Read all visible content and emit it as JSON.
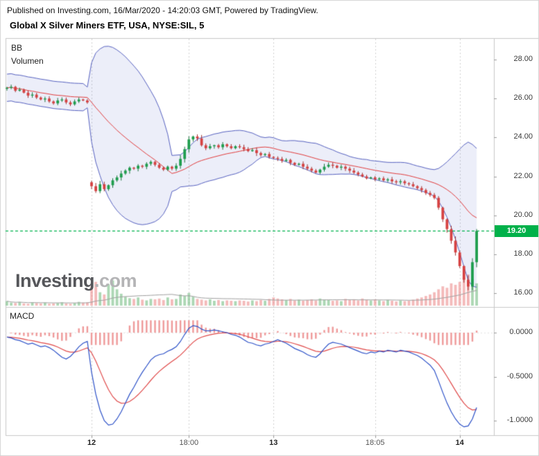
{
  "header": {
    "published_line": "Published on Investing.com, 16/Mar/2020 - 14:20:03 GMT, Powered by TradingView.",
    "title": "Global X Silver Miners ETF, USA, NYSE:SIL, 5"
  },
  "indicators": {
    "bb_label": "BB",
    "volume_label": "Volumen",
    "macd_label": "MACD"
  },
  "watermark": {
    "bold": "Investing",
    "light": ".com"
  },
  "price_label": {
    "value": "19.20"
  },
  "chart_data": {
    "type": "candlestick",
    "title": "Global X Silver Miners ETF, USA, NYSE:SIL, 5",
    "symbol": "NYSE:SIL",
    "interval_minutes": 5,
    "current_price": 19.2,
    "price_axis": {
      "values": [
        28,
        26,
        24,
        22,
        20,
        18,
        16
      ],
      "labels": [
        "28.00",
        "26.00",
        "24.00",
        "22.00",
        "20.00",
        "18.00",
        "16.00"
      ],
      "range": [
        15.3,
        29.1
      ]
    },
    "macd_axis": {
      "values": [
        0,
        -0.5,
        -1.0
      ],
      "labels": [
        "0.0000",
        "-0.5000",
        "-1.0000"
      ],
      "range": [
        -1.16,
        0.28
      ]
    },
    "time_axis": {
      "ticks": [
        {
          "label": "12",
          "index": 20,
          "major": true
        },
        {
          "label": "18:00",
          "index": 43,
          "major": false
        },
        {
          "label": "13",
          "index": 63,
          "major": true
        },
        {
          "label": "18:05",
          "index": 87,
          "major": false
        },
        {
          "label": "14",
          "index": 107,
          "major": true
        }
      ]
    },
    "indicator_params": {
      "bb_period": 20,
      "bb_mult": 2,
      "macd_signal_period": 9,
      "volume_ma_period": 20
    },
    "candles": {
      "closes": [
        26.55,
        26.6,
        26.4,
        26.45,
        26.3,
        26.15,
        26.2,
        26.05,
        25.95,
        26.0,
        25.85,
        25.75,
        25.9,
        25.95,
        25.8,
        25.7,
        25.85,
        25.95,
        25.9,
        25.8,
        21.5,
        21.25,
        21.6,
        21.35,
        21.55,
        21.8,
        21.95,
        22.15,
        22.3,
        22.45,
        22.4,
        22.55,
        22.5,
        22.65,
        22.75,
        22.6,
        22.45,
        22.35,
        22.5,
        22.4,
        22.55,
        22.9,
        23.4,
        23.9,
        24.05,
        23.95,
        23.6,
        23.45,
        23.55,
        23.6,
        23.5,
        23.65,
        23.55,
        23.45,
        23.55,
        23.5,
        23.4,
        23.3,
        23.35,
        23.2,
        23.1,
        23.15,
        23.0,
        22.95,
        22.9,
        22.8,
        22.85,
        22.7,
        22.6,
        22.65,
        22.5,
        22.4,
        22.3,
        22.2,
        22.35,
        22.5,
        22.6,
        22.55,
        22.45,
        22.5,
        22.4,
        22.3,
        22.2,
        22.1,
        22.0,
        21.9,
        21.95,
        21.85,
        21.9,
        21.8,
        21.85,
        21.75,
        21.7,
        21.75,
        21.65,
        21.6,
        21.5,
        21.4,
        21.3,
        21.15,
        21.05,
        20.9,
        20.4,
        19.8,
        19.3,
        18.7,
        18.1,
        17.4,
        16.7,
        16.35,
        17.6,
        19.2
      ],
      "gap_opens": {
        "0": 26.5,
        "20": 21.7
      }
    },
    "volume": [
      60,
      40,
      35,
      50,
      30,
      25,
      45,
      35,
      30,
      40,
      25,
      30,
      35,
      45,
      30,
      25,
      35,
      50,
      40,
      45,
      260,
      320,
      180,
      150,
      290,
      340,
      220,
      160,
      120,
      100,
      90,
      110,
      80,
      70,
      90,
      85,
      95,
      75,
      110,
      85,
      90,
      150,
      130,
      170,
      120,
      90,
      80,
      70,
      85,
      65,
      75,
      60,
      70,
      65,
      60,
      70,
      65,
      55,
      70,
      60,
      75,
      65,
      90,
      110,
      95,
      85,
      75,
      90,
      70,
      80,
      65,
      75,
      85,
      70,
      95,
      80,
      75,
      65,
      70,
      60,
      90,
      75,
      85,
      70,
      95,
      80,
      70,
      85,
      70,
      60,
      75,
      65,
      55,
      70,
      60,
      65,
      80,
      95,
      110,
      130,
      150,
      180,
      220,
      260,
      240,
      300,
      280,
      320,
      380,
      420,
      360,
      300
    ],
    "macd": [
      -0.05,
      -0.06,
      -0.08,
      -0.09,
      -0.11,
      -0.13,
      -0.12,
      -0.14,
      -0.16,
      -0.15,
      -0.17,
      -0.2,
      -0.24,
      -0.28,
      -0.3,
      -0.27,
      -0.22,
      -0.16,
      -0.12,
      -0.1,
      -0.45,
      -0.7,
      -0.88,
      -1.0,
      -1.05,
      -1.04,
      -0.98,
      -0.9,
      -0.8,
      -0.7,
      -0.62,
      -0.53,
      -0.45,
      -0.38,
      -0.31,
      -0.27,
      -0.25,
      -0.24,
      -0.21,
      -0.19,
      -0.16,
      -0.1,
      -0.02,
      0.05,
      0.08,
      0.07,
      0.04,
      0.02,
      0.02,
      0.03,
      0.02,
      0.01,
      0.0,
      -0.02,
      -0.03,
      -0.05,
      -0.08,
      -0.11,
      -0.12,
      -0.14,
      -0.15,
      -0.13,
      -0.12,
      -0.1,
      -0.08,
      -0.1,
      -0.12,
      -0.15,
      -0.18,
      -0.2,
      -0.22,
      -0.25,
      -0.27,
      -0.28,
      -0.24,
      -0.18,
      -0.13,
      -0.11,
      -0.12,
      -0.13,
      -0.15,
      -0.17,
      -0.19,
      -0.21,
      -0.23,
      -0.24,
      -0.22,
      -0.23,
      -0.21,
      -0.22,
      -0.2,
      -0.21,
      -0.22,
      -0.2,
      -0.21,
      -0.22,
      -0.24,
      -0.26,
      -0.29,
      -0.33,
      -0.37,
      -0.43,
      -0.55,
      -0.68,
      -0.8,
      -0.9,
      -0.98,
      -1.04,
      -1.07,
      -1.06,
      -0.98,
      -0.85
    ],
    "colors": {
      "candle_up": "#1f9e4e",
      "candle_up_border": "#166f37",
      "candle_down": "#d64242",
      "candle_down_border": "#9c2f2f",
      "bb_band_line": "#5560c0",
      "bb_fill": "rgba(108,120,210,0.13)",
      "bb_mid": "#e23b3b",
      "macd_line": "#2b50c8",
      "macd_signal": "#e04848",
      "macd_hist": "#ef9a9a",
      "vol_up": "rgba(103,183,119,0.55)",
      "vol_down": "rgba(235,130,130,0.55)",
      "vol_ma": "#a0a0a0",
      "last_price_line": "#00b34e",
      "last_price_badge": "#00b14a",
      "grid": "#cfcfcf",
      "frame": "#c8c8c8"
    }
  }
}
